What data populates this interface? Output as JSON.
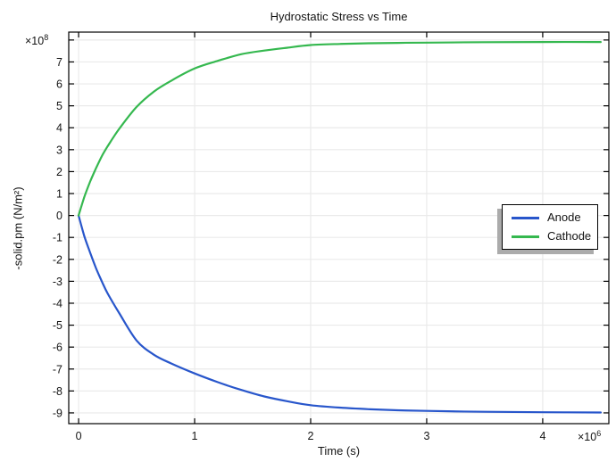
{
  "chart_data": {
    "type": "line",
    "title": "Hydrostatic Stress vs Time",
    "xlabel": "Time (s)",
    "ylabel": "-solid.pm (N/m²)",
    "x_axis_multiplier": {
      "base": "×10",
      "exp": "6"
    },
    "y_axis_multiplier": {
      "base": "×10",
      "exp": "8"
    },
    "xlim": [
      -0.085,
      4.57
    ],
    "ylim": [
      -9.49,
      8.36
    ],
    "x_ticks": {
      "values": [
        0,
        1,
        2,
        3,
        4
      ],
      "labels": [
        "0",
        "1",
        "2",
        "3",
        "4"
      ]
    },
    "y_ticks": {
      "values": [
        8,
        7,
        6,
        5,
        4,
        3,
        2,
        1,
        0,
        -1,
        -2,
        -3,
        -4,
        -5,
        -6,
        -7,
        -8,
        -9
      ],
      "labels": [
        "",
        "7",
        "6",
        "5",
        "4",
        "3",
        "2",
        "1",
        "0",
        "-1",
        "-2",
        "-3",
        "-4",
        "-5",
        "-6",
        "-7",
        "-8",
        "-9"
      ]
    },
    "grid": true,
    "legend_position": "middle-right",
    "colors": {
      "grid": "#eaeaea",
      "frame": "#000000",
      "text": "#141414"
    },
    "x_shared": [
      0,
      0.05,
      0.1,
      0.15,
      0.2,
      0.25,
      0.35,
      0.5,
      0.65,
      0.8,
      1.0,
      1.2,
      1.4,
      1.6,
      1.8,
      2.0,
      2.25,
      2.5,
      2.75,
      3.0,
      3.5,
      4.0,
      4.5
    ],
    "series": [
      {
        "name": "Anode",
        "color": "#2856cb",
        "y": [
          0,
          -0.95,
          -1.7,
          -2.4,
          -3.0,
          -3.55,
          -4.45,
          -5.7,
          -6.35,
          -6.75,
          -7.2,
          -7.6,
          -7.95,
          -8.25,
          -8.47,
          -8.65,
          -8.76,
          -8.83,
          -8.88,
          -8.91,
          -8.95,
          -8.97,
          -8.98
        ]
      },
      {
        "name": "Cathode",
        "color": "#35b84f",
        "y": [
          0,
          0.85,
          1.55,
          2.15,
          2.7,
          3.15,
          3.95,
          4.95,
          5.65,
          6.15,
          6.7,
          7.05,
          7.35,
          7.52,
          7.65,
          7.77,
          7.82,
          7.85,
          7.87,
          7.88,
          7.9,
          7.91,
          7.91
        ]
      }
    ]
  }
}
